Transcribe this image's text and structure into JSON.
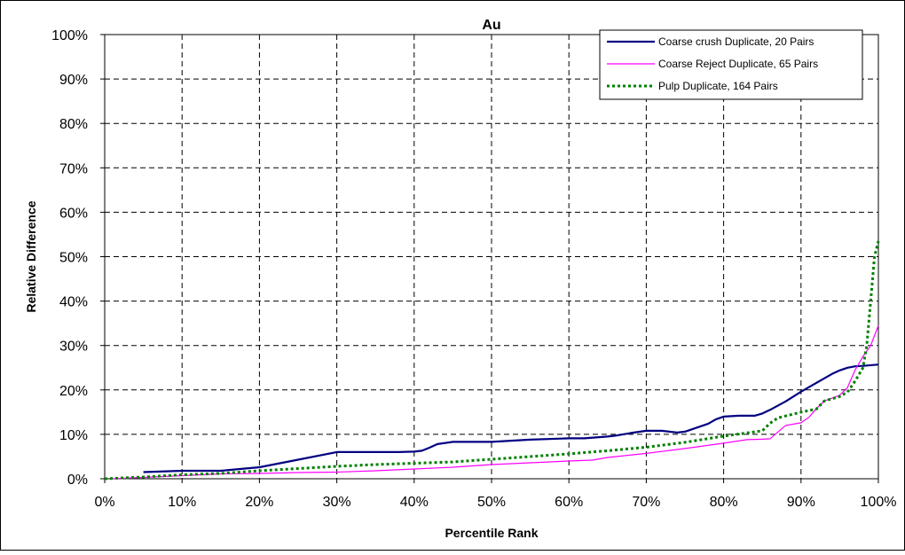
{
  "chart_data": {
    "type": "line",
    "title": "Au",
    "xlabel": "Percentile Rank",
    "ylabel": "Relative Difference",
    "xlim": [
      0,
      100
    ],
    "ylim": [
      0,
      100
    ],
    "x_ticks": [
      "0%",
      "10%",
      "20%",
      "30%",
      "40%",
      "50%",
      "60%",
      "70%",
      "80%",
      "90%",
      "100%"
    ],
    "y_ticks": [
      "0%",
      "10%",
      "20%",
      "30%",
      "40%",
      "50%",
      "60%",
      "70%",
      "80%",
      "90%",
      "100%"
    ],
    "grid": true,
    "legend_position": "top-right",
    "series": [
      {
        "name": "Coarse crush Duplicate, 20 Pairs",
        "color": "#000080",
        "style": "solid",
        "x": [
          5,
          10,
          15,
          20,
          25,
          30,
          35,
          38,
          40,
          41,
          42,
          43,
          45,
          50,
          55,
          60,
          62,
          65,
          66,
          68,
          70,
          72,
          74,
          75,
          76,
          78,
          79,
          80,
          82,
          84,
          85,
          86,
          88,
          90,
          92,
          94,
          95,
          96,
          97,
          98,
          100
        ],
        "y": [
          1.5,
          1.8,
          1.8,
          2.6,
          4.3,
          6.0,
          6.0,
          6.0,
          6.1,
          6.3,
          7.0,
          7.8,
          8.3,
          8.3,
          8.8,
          9.1,
          9.1,
          9.5,
          9.7,
          10.3,
          10.8,
          10.8,
          10.4,
          10.6,
          11.2,
          12.4,
          13.4,
          14.0,
          14.2,
          14.2,
          14.7,
          15.5,
          17.4,
          19.6,
          21.6,
          23.6,
          24.4,
          25.0,
          25.3,
          25.4,
          25.7
        ]
      },
      {
        "name": "Coarse Reject Duplicate, 65 Pairs",
        "color": "#ff00ff",
        "style": "solid",
        "x": [
          1,
          5,
          10,
          15,
          20,
          25,
          30,
          35,
          40,
          45,
          50,
          55,
          60,
          63,
          65,
          70,
          75,
          80,
          83,
          85,
          86,
          87,
          88,
          90,
          91,
          92,
          93,
          95,
          96,
          97,
          98,
          99,
          100
        ],
        "y": [
          0.0,
          0.3,
          0.7,
          1.1,
          1.2,
          1.4,
          1.5,
          1.8,
          2.2,
          2.6,
          3.2,
          3.6,
          4.0,
          4.2,
          4.8,
          5.7,
          6.8,
          8.0,
          8.8,
          8.9,
          9.0,
          10.5,
          12.0,
          12.6,
          13.8,
          15.8,
          17.5,
          18.8,
          20.5,
          24.5,
          27.5,
          30.0,
          34.5
        ]
      },
      {
        "name": "Pulp Duplicate, 164 Pairs",
        "color": "#008000",
        "style": "dotted",
        "x": [
          0,
          5,
          10,
          15,
          20,
          25,
          30,
          35,
          40,
          45,
          50,
          55,
          60,
          65,
          70,
          75,
          80,
          85,
          86,
          87,
          90,
          92,
          93,
          95,
          96,
          97,
          98,
          98.5,
          99,
          99.5,
          100
        ],
        "y": [
          0.0,
          0.4,
          0.9,
          1.2,
          1.8,
          2.3,
          2.8,
          3.2,
          3.5,
          3.8,
          4.4,
          5.0,
          5.6,
          6.3,
          7.1,
          8.2,
          9.6,
          10.8,
          12.5,
          13.7,
          15.0,
          15.7,
          17.5,
          18.5,
          19.5,
          22.0,
          25.0,
          30.0,
          40.0,
          50.0,
          53.5
        ]
      }
    ]
  }
}
